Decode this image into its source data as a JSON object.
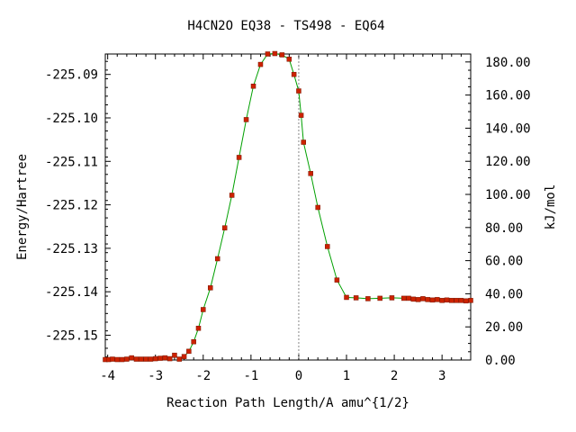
{
  "chart_data": {
    "type": "line",
    "title": "H4CN2O   EQ38 - TS498 - EQ64",
    "xlabel": "Reaction Path Length/A amu^{1/2}",
    "ylabel": "Energy/Hartree",
    "y2label": "kJ/mol",
    "xlim": [
      -4.05,
      3.6
    ],
    "ylim": [
      -225.1557,
      -225.0853
    ],
    "y2lim": [
      0.0,
      184.8
    ],
    "xticks": [
      -4,
      -3,
      -2,
      -1,
      0,
      1,
      2,
      3
    ],
    "xtick_labels": [
      "-4",
      "-3",
      "-2",
      "-1",
      "0",
      "1",
      "2",
      "3"
    ],
    "yticks": [
      -225.09,
      -225.1,
      -225.11,
      -225.12,
      -225.13,
      -225.14,
      -225.15
    ],
    "ytick_labels": [
      "-225.09",
      "-225.10",
      "-225.11",
      "-225.12",
      "-225.13",
      "-225.14",
      "-225.15"
    ],
    "y2ticks": [
      0,
      20,
      40,
      60,
      80,
      100,
      120,
      140,
      160,
      180
    ],
    "y2tick_labels": [
      "0.00",
      "20.00",
      "40.00",
      "60.00",
      "80.00",
      "100.00",
      "120.00",
      "140.00",
      "160.00",
      "180.00"
    ],
    "ts_marker_x": 0.0,
    "grid": false,
    "line_color": "#00a000",
    "marker_color": "#cc2200",
    "series": [
      {
        "x": [
          -4.05,
          -3.98,
          -3.9,
          -3.8,
          -3.7,
          -3.6,
          -3.5,
          -3.4,
          -3.3,
          -3.2,
          -3.1,
          -3.0,
          -2.9,
          -2.8,
          -2.7,
          -2.6,
          -2.5,
          -2.4,
          -2.3,
          -2.2,
          -2.1,
          -2.0,
          -1.85,
          -1.7,
          -1.55,
          -1.4,
          -1.25,
          -1.1,
          -0.95,
          -0.8,
          -0.65,
          -0.5,
          -0.35,
          -0.2,
          -0.1,
          0.0,
          0.05,
          0.1,
          0.25,
          0.4,
          0.6,
          0.8,
          1.0,
          1.2,
          1.45,
          1.7,
          1.95,
          2.2,
          2.3,
          2.4,
          2.5,
          2.6,
          2.7,
          2.8,
          2.9,
          3.0,
          3.1,
          3.2,
          3.3,
          3.4,
          3.5,
          3.6
        ],
        "y": [
          -225.1556,
          -225.1556,
          -225.1555,
          -225.1556,
          -225.1556,
          -225.1555,
          -225.1552,
          -225.1555,
          -225.1555,
          -225.1555,
          -225.1555,
          -225.1554,
          -225.1553,
          -225.1552,
          -225.1554,
          -225.1546,
          -225.1555,
          -225.1549,
          -225.1537,
          -225.1515,
          -225.1484,
          -225.1441,
          -225.1391,
          -225.1324,
          -225.1253,
          -225.1178,
          -225.1091,
          -225.1004,
          -225.0927,
          -225.0877,
          -225.0853,
          -225.0852,
          -225.0855,
          -225.0865,
          -225.09,
          -225.0938,
          -225.0994,
          -225.1056,
          -225.1128,
          -225.1206,
          -225.1296,
          -225.1373,
          -225.1413,
          -225.1414,
          -225.1416,
          -225.1415,
          -225.1414,
          -225.1415,
          -225.1415,
          -225.1417,
          -225.1418,
          -225.1416,
          -225.1418,
          -225.1419,
          -225.1418,
          -225.142,
          -225.1419,
          -225.142,
          -225.142,
          -225.142,
          -225.1421,
          -225.142
        ]
      }
    ]
  }
}
